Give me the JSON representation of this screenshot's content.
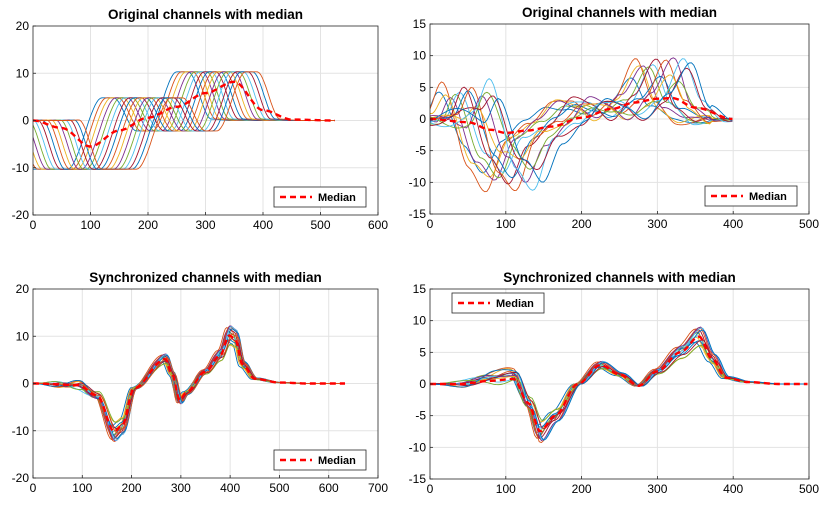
{
  "chart_data": [
    {
      "type": "line",
      "title": "Original channels with median",
      "xlabel": "",
      "ylabel": "",
      "xlim": [
        0,
        600
      ],
      "ylim": [
        -20,
        20
      ],
      "xticks": [
        0,
        100,
        200,
        300,
        400,
        500,
        600
      ],
      "yticks": [
        -20,
        -10,
        0,
        10,
        20
      ],
      "grid": true,
      "legend": {
        "placement": "bottom-right",
        "entries": [
          "Median"
        ]
      },
      "colors": [
        "#0072BD",
        "#D95319",
        "#EDB120",
        "#7E2F8E",
        "#77AC30",
        "#4DBEEE",
        "#A2142F"
      ],
      "median_color": "#FF0000",
      "series": [
        {
          "style": "ramp",
          "count": 16,
          "base_shift": 0,
          "spread": 120,
          "amplitude": 10.3,
          "x_end": 525,
          "points": [
            [
              0,
              0
            ],
            [
              20,
              0.1
            ],
            [
              60,
              -10.3
            ],
            [
              120,
              -10.3
            ],
            [
              180,
              4.8
            ],
            [
              200,
              4.8
            ],
            [
              240,
              -2.2
            ],
            [
              260,
              -2.2
            ],
            [
              310,
              10.3
            ],
            [
              330,
              10.3
            ],
            [
              370,
              0.3
            ],
            [
              405,
              0
            ]
          ]
        },
        {
          "name": "Median",
          "x": [
            0,
            50,
            100,
            150,
            200,
            250,
            300,
            350,
            400,
            450,
            525
          ],
          "y": [
            0,
            -1.6,
            -5.5,
            -2.1,
            0.6,
            2.9,
            5.8,
            8.2,
            2.2,
            0.2,
            0
          ]
        }
      ]
    },
    {
      "type": "line",
      "title": "Original channels with median",
      "xlabel": "",
      "ylabel": "",
      "xlim": [
        0,
        500
      ],
      "ylim": [
        -15,
        15
      ],
      "xticks": [
        0,
        100,
        200,
        300,
        400,
        500
      ],
      "yticks": [
        -15,
        -10,
        -5,
        0,
        5,
        10,
        15
      ],
      "grid": true,
      "legend": {
        "placement": "bottom-right",
        "entries": [
          "Median"
        ]
      },
      "colors": [
        "#0072BD",
        "#D95319",
        "#EDB120",
        "#7E2F8E",
        "#77AC30",
        "#4DBEEE",
        "#A2142F"
      ],
      "median_color": "#FF0000",
      "series": [
        {
          "style": "wave",
          "count": 15,
          "spread": 80,
          "x_end": 400,
          "points": [
            [
              0,
              0
            ],
            [
              30,
              0
            ],
            [
              50,
              4
            ],
            [
              85,
              -6
            ],
            [
              108,
              -9
            ],
            [
              135,
              -3
            ],
            [
              165,
              -0.5
            ],
            [
              195,
              2.5
            ],
            [
              220,
              2
            ],
            [
              245,
              0.3
            ],
            [
              275,
              3
            ],
            [
              305,
              8
            ],
            [
              330,
              2
            ],
            [
              360,
              -0.3
            ],
            [
              400,
              0
            ]
          ]
        },
        {
          "name": "Median",
          "x": [
            0,
            50,
            80,
            100,
            130,
            160,
            200,
            240,
            270,
            300,
            320,
            350,
            400
          ],
          "y": [
            0,
            -0.5,
            -1.7,
            -2.2,
            -1.8,
            -1.2,
            0.2,
            1.6,
            2.6,
            3.2,
            3.3,
            1.8,
            0
          ]
        }
      ]
    },
    {
      "type": "line",
      "title": "Synchronized channels with median",
      "xlabel": "",
      "ylabel": "",
      "xlim": [
        0,
        700
      ],
      "ylim": [
        -20,
        20
      ],
      "xticks": [
        0,
        100,
        200,
        300,
        400,
        500,
        600,
        700
      ],
      "yticks": [
        -20,
        -10,
        0,
        10,
        20
      ],
      "grid": true,
      "legend": {
        "placement": "bottom-right",
        "entries": [
          "Median"
        ]
      },
      "colors": [
        "#0072BD",
        "#D95319",
        "#EDB120",
        "#7E2F8E",
        "#77AC30",
        "#4DBEEE",
        "#A2142F"
      ],
      "median_color": "#FF0000",
      "series": [
        {
          "style": "sync",
          "count": 16,
          "spread": 12,
          "x_end": 635,
          "points": [
            [
              0,
              0
            ],
            [
              90,
              -0.3
            ],
            [
              130,
              -2.5
            ],
            [
              165,
              -10.2
            ],
            [
              180,
              -9
            ],
            [
              205,
              -1
            ],
            [
              268,
              5.2
            ],
            [
              282,
              2
            ],
            [
              298,
              -3.6
            ],
            [
              310,
              -2
            ],
            [
              350,
              2.5
            ],
            [
              380,
              6
            ],
            [
              398,
              10.2
            ],
            [
              410,
              9.5
            ],
            [
              425,
              4
            ],
            [
              450,
              1
            ],
            [
              500,
              0.2
            ],
            [
              560,
              0
            ],
            [
              635,
              0
            ]
          ]
        },
        {
          "name": "Median",
          "x": [
            0,
            90,
            130,
            165,
            180,
            205,
            268,
            282,
            298,
            310,
            350,
            380,
            398,
            410,
            425,
            450,
            500,
            560,
            635
          ],
          "y": [
            0,
            -0.3,
            -2.5,
            -10.2,
            -9,
            -1,
            5.2,
            2,
            -3.6,
            -2,
            2.5,
            6,
            10.2,
            9.5,
            4,
            1,
            0.2,
            0,
            0
          ]
        }
      ]
    },
    {
      "type": "line",
      "title": "Synchronized channels with median",
      "xlabel": "",
      "ylabel": "",
      "xlim": [
        0,
        500
      ],
      "ylim": [
        -15,
        15
      ],
      "xticks": [
        0,
        100,
        200,
        300,
        400,
        500
      ],
      "yticks": [
        -15,
        -10,
        -5,
        0,
        5,
        10,
        15
      ],
      "grid": true,
      "legend": {
        "placement": "top-left",
        "entries": [
          "Median"
        ]
      },
      "colors": [
        "#0072BD",
        "#D95319",
        "#EDB120",
        "#7E2F8E",
        "#77AC30",
        "#4DBEEE",
        "#A2142F"
      ],
      "median_color": "#FF0000",
      "series": [
        {
          "style": "sync",
          "count": 15,
          "spread": 10,
          "x_end": 500,
          "points": [
            [
              0,
              0
            ],
            [
              40,
              0
            ],
            [
              80,
              1
            ],
            [
              110,
              1.5
            ],
            [
              130,
              -3
            ],
            [
              145,
              -7.5
            ],
            [
              165,
              -5
            ],
            [
              195,
              0
            ],
            [
              225,
              3
            ],
            [
              250,
              1.5
            ],
            [
              275,
              -0.3
            ],
            [
              300,
              2
            ],
            [
              330,
              5
            ],
            [
              355,
              7.5
            ],
            [
              372,
              4
            ],
            [
              390,
              1
            ],
            [
              420,
              0.3
            ],
            [
              460,
              0
            ],
            [
              500,
              0
            ]
          ]
        },
        {
          "name": "Median",
          "x": [
            0,
            40,
            80,
            110,
            130,
            145,
            165,
            195,
            225,
            250,
            275,
            300,
            330,
            355,
            372,
            390,
            420,
            460,
            500
          ],
          "y": [
            0,
            0,
            0.5,
            0.8,
            -3,
            -7.5,
            -5,
            0,
            3,
            1.5,
            -0.3,
            2,
            5,
            7.5,
            4,
            1,
            0.3,
            0,
            0
          ]
        }
      ]
    }
  ]
}
